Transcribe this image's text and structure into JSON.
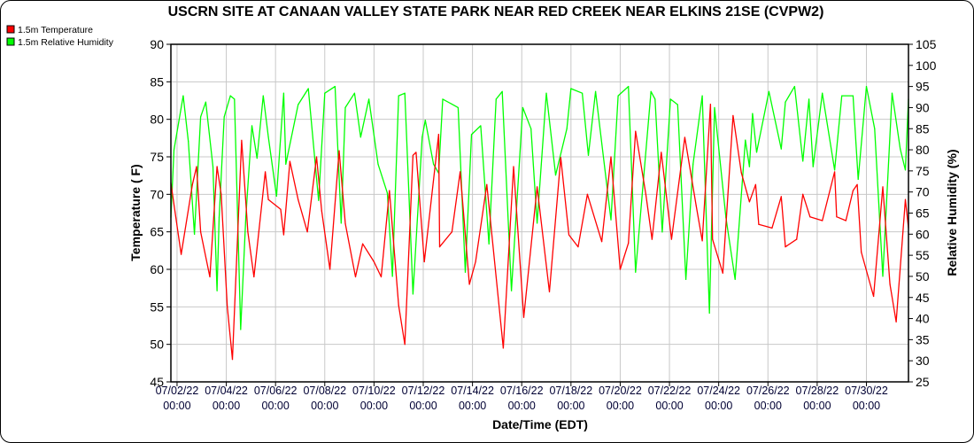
{
  "chart_data": {
    "type": "line",
    "title": "USCRN SITE AT CANAAN VALLEY STATE PARK NEAR RED CREEK NEAR ELKINS 21SE (CVPW2)",
    "xlabel": "Date/Time (EDT)",
    "ylabel": "Temperature ( F)",
    "y2label": "Relative Humidity (%)",
    "xlim": [
      "07/01/22 18:00",
      "07/31/22 17:00"
    ],
    "ylim": [
      45,
      90
    ],
    "y2lim": [
      25,
      105
    ],
    "yticks": [
      45,
      50,
      55,
      60,
      65,
      70,
      75,
      80,
      85,
      90
    ],
    "y2ticks": [
      25,
      30,
      35,
      40,
      45,
      50,
      55,
      60,
      65,
      70,
      75,
      80,
      85,
      90,
      95,
      100,
      105
    ],
    "xticks": [
      [
        "07/02/22",
        "00:00"
      ],
      [
        "07/04/22",
        "00:00"
      ],
      [
        "07/06/22",
        "00:00"
      ],
      [
        "07/08/22",
        "00:00"
      ],
      [
        "07/10/22",
        "00:00"
      ],
      [
        "07/12/22",
        "00:00"
      ],
      [
        "07/14/22",
        "00:00"
      ],
      [
        "07/16/22",
        "00:00"
      ],
      [
        "07/18/22",
        "00:00"
      ],
      [
        "07/20/22",
        "00:00"
      ],
      [
        "07/22/22",
        "00:00"
      ],
      [
        "07/24/22",
        "00:00"
      ],
      [
        "07/26/22",
        "00:00"
      ],
      [
        "07/28/22",
        "00:00"
      ],
      [
        "07/30/22",
        "00:00"
      ]
    ],
    "grid": true,
    "legend_position": "top-left",
    "series": [
      {
        "name": "1.5m Temperature",
        "color": "#ff0000",
        "axis": "left",
        "points": [
          [
            "07/01/22 18:00",
            71.5
          ],
          [
            "07/02/22 04:00",
            62
          ],
          [
            "07/02/22 15:00",
            71.3
          ],
          [
            "07/02/22 19:00",
            73.7
          ],
          [
            "07/02/22 23:00",
            65
          ],
          [
            "07/03/22 08:00",
            59
          ],
          [
            "07/03/22 15:00",
            73.7
          ],
          [
            "07/03/22 19:00",
            70
          ],
          [
            "07/04/22 01:00",
            55
          ],
          [
            "07/04/22 06:00",
            48
          ],
          [
            "07/04/22 15:00",
            77.2
          ],
          [
            "07/04/22 21:00",
            65
          ],
          [
            "07/05/22 03:00",
            59
          ],
          [
            "07/05/22 14:00",
            73
          ],
          [
            "07/05/22 17:00",
            69.3
          ],
          [
            "07/06/22 05:00",
            68
          ],
          [
            "07/06/22 08:00",
            64.6
          ],
          [
            "07/06/22 14:00",
            74.4
          ],
          [
            "07/06/22 22:00",
            69.3
          ],
          [
            "07/07/22 07:00",
            65
          ],
          [
            "07/07/22 16:00",
            75
          ],
          [
            "07/07/22 21:00",
            67.8
          ],
          [
            "07/08/22 05:00",
            60
          ],
          [
            "07/08/22 14:00",
            75.8
          ],
          [
            "07/08/22 20:00",
            66.1
          ],
          [
            "07/09/22 06:00",
            59
          ],
          [
            "07/09/22 13:00",
            63.4
          ],
          [
            "07/10/22 00:00",
            61
          ],
          [
            "07/10/22 07:00",
            59
          ],
          [
            "07/10/22 15:00",
            70.5
          ],
          [
            "07/11/22 00:00",
            55.2
          ],
          [
            "07/11/22 06:00",
            50
          ],
          [
            "07/11/22 14:00",
            75.2
          ],
          [
            "07/11/22 17:00",
            75.6
          ],
          [
            "07/12/22 01:00",
            61
          ],
          [
            "07/12/22 15:00",
            78
          ],
          [
            "07/12/22 16:00",
            63
          ],
          [
            "07/13/22 04:00",
            65
          ],
          [
            "07/13/22 12:00",
            73
          ],
          [
            "07/13/22 21:00",
            58
          ],
          [
            "07/14/22 03:00",
            61
          ],
          [
            "07/14/22 14:00",
            71.3
          ],
          [
            "07/15/22 06:00",
            49.5
          ],
          [
            "07/15/22 16:00",
            73.7
          ],
          [
            "07/16/22 02:00",
            53.6
          ],
          [
            "07/16/22 15:00",
            71
          ],
          [
            "07/17/22 03:00",
            57
          ],
          [
            "07/17/22 14:00",
            74.9
          ],
          [
            "07/17/22 22:00",
            64.6
          ],
          [
            "07/18/22 07:00",
            63
          ],
          [
            "07/18/22 16:00",
            70
          ],
          [
            "07/19/22 06:00",
            63.7
          ],
          [
            "07/19/22 15:00",
            75
          ],
          [
            "07/20/22 00:00",
            60
          ],
          [
            "07/20/22 08:00",
            63.5
          ],
          [
            "07/20/22 15:00",
            78.4
          ],
          [
            "07/21/22 01:00",
            70
          ],
          [
            "07/21/22 07:00",
            64
          ],
          [
            "07/21/22 16:00",
            75.6
          ],
          [
            "07/22/22 02:00",
            64
          ],
          [
            "07/22/22 15:00",
            77.6
          ],
          [
            "07/23/22 02:00",
            68.5
          ],
          [
            "07/23/22 08:00",
            63.8
          ],
          [
            "07/23/22 16:00",
            82
          ],
          [
            "07/23/22 18:00",
            64
          ],
          [
            "07/24/22 04:00",
            59.5
          ],
          [
            "07/24/22 14:00",
            80.5
          ],
          [
            "07/24/22 22:00",
            72.9
          ],
          [
            "07/25/22 06:00",
            69
          ],
          [
            "07/25/22 12:00",
            71.3
          ],
          [
            "07/25/22 15:00",
            66
          ],
          [
            "07/26/22 04:00",
            65.5
          ],
          [
            "07/26/22 13:00",
            69.7
          ],
          [
            "07/26/22 17:00",
            63
          ],
          [
            "07/27/22 04:00",
            64
          ],
          [
            "07/27/22 10:00",
            70
          ],
          [
            "07/27/22 17:00",
            67
          ],
          [
            "07/28/22 05:00",
            66.5
          ],
          [
            "07/28/22 17:00",
            73
          ],
          [
            "07/28/22 19:00",
            67
          ],
          [
            "07/29/22 04:00",
            66.5
          ],
          [
            "07/29/22 11:00",
            70.5
          ],
          [
            "07/29/22 15:00",
            71.3
          ],
          [
            "07/29/22 19:00",
            62.3
          ],
          [
            "07/30/22 07:00",
            56.4
          ],
          [
            "07/30/22 16:00",
            71
          ],
          [
            "07/30/22 23:00",
            58
          ],
          [
            "07/31/22 05:00",
            53
          ],
          [
            "07/31/22 14:00",
            69.3
          ],
          [
            "07/31/22 17:00",
            65.5
          ]
        ]
      },
      {
        "name": "1.5m Relative Humidity",
        "color": "#00ff00",
        "axis": "right",
        "points": [
          [
            "07/01/22 18:00",
            64
          ],
          [
            "07/01/22 21:00",
            80
          ],
          [
            "07/02/22 06:00",
            92.8
          ],
          [
            "07/02/22 11:00",
            82
          ],
          [
            "07/02/22 17:00",
            60
          ],
          [
            "07/02/22 23:00",
            87.8
          ],
          [
            "07/03/22 04:00",
            91.3
          ],
          [
            "07/03/22 11:00",
            76
          ],
          [
            "07/03/22 15:00",
            46.6
          ],
          [
            "07/03/22 17:00",
            64
          ],
          [
            "07/03/22 22:00",
            87.8
          ],
          [
            "07/04/22 04:00",
            92.8
          ],
          [
            "07/04/22 08:00",
            92
          ],
          [
            "07/04/22 14:00",
            37.4
          ],
          [
            "07/04/22 19:00",
            64
          ],
          [
            "07/05/22 01:00",
            85.7
          ],
          [
            "07/05/22 06:00",
            78
          ],
          [
            "07/05/22 12:00",
            92.8
          ],
          [
            "07/05/22 17:00",
            83
          ],
          [
            "07/06/22 01:00",
            69
          ],
          [
            "07/06/22 08:00",
            93.4
          ],
          [
            "07/06/22 10:00",
            76.6
          ],
          [
            "07/06/22 22:00",
            90.7
          ],
          [
            "07/07/22 08:00",
            94.5
          ],
          [
            "07/07/22 18:00",
            68
          ],
          [
            "07/08/22 00:00",
            93.4
          ],
          [
            "07/08/22 10:00",
            95
          ],
          [
            "07/08/22 16:00",
            62.6
          ],
          [
            "07/08/22 20:00",
            90
          ],
          [
            "07/09/22 05:00",
            93.4
          ],
          [
            "07/09/22 11:00",
            83
          ],
          [
            "07/09/22 19:00",
            92
          ],
          [
            "07/10/22 04:00",
            76.6
          ],
          [
            "07/10/22 13:00",
            69.7
          ],
          [
            "07/10/22 18:00",
            50
          ],
          [
            "07/11/22 00:00",
            92.8
          ],
          [
            "07/11/22 06:00",
            93.4
          ],
          [
            "07/11/22 14:00",
            45.8
          ],
          [
            "07/11/22 23:00",
            83
          ],
          [
            "07/12/22 02:00",
            87
          ],
          [
            "07/12/22 10:00",
            76.6
          ],
          [
            "07/12/22 15:00",
            74.5
          ],
          [
            "07/12/22 19:00",
            92
          ],
          [
            "07/13/22 10:00",
            90
          ],
          [
            "07/13/22 17:00",
            51
          ],
          [
            "07/13/22 23:00",
            83.6
          ],
          [
            "07/14/22 08:00",
            85.7
          ],
          [
            "07/14/22 16:00",
            57.7
          ],
          [
            "07/14/22 23:00",
            92
          ],
          [
            "07/15/22 05:00",
            93.8
          ],
          [
            "07/15/22 14:00",
            46.6
          ],
          [
            "07/16/22 01:00",
            90
          ],
          [
            "07/16/22 09:00",
            85
          ],
          [
            "07/16/22 15:00",
            62.6
          ],
          [
            "07/17/22 00:00",
            93.4
          ],
          [
            "07/17/22 09:00",
            74
          ],
          [
            "07/17/22 20:00",
            85
          ],
          [
            "07/18/22 00:00",
            94.5
          ],
          [
            "07/18/22 11:00",
            93.4
          ],
          [
            "07/18/22 17:00",
            78.7
          ],
          [
            "07/19/22 00:00",
            93.8
          ],
          [
            "07/19/22 15:00",
            63.4
          ],
          [
            "07/19/22 22:00",
            92.8
          ],
          [
            "07/20/22 08:00",
            95
          ],
          [
            "07/20/22 15:00",
            51
          ],
          [
            "07/21/22 06:00",
            93.8
          ],
          [
            "07/21/22 10:00",
            92
          ],
          [
            "07/21/22 17:00",
            60.5
          ],
          [
            "07/22/22 01:00",
            92
          ],
          [
            "07/22/22 08:00",
            90.7
          ],
          [
            "07/22/22 16:00",
            49.3
          ],
          [
            "07/22/22 23:00",
            76.6
          ],
          [
            "07/23/22 08:00",
            92.8
          ],
          [
            "07/23/22 15:00",
            41.3
          ],
          [
            "07/23/22 20:00",
            90
          ],
          [
            "07/24/22 07:00",
            64
          ],
          [
            "07/24/22 16:00",
            49.3
          ],
          [
            "07/25/22 02:00",
            82.3
          ],
          [
            "07/25/22 06:00",
            76
          ],
          [
            "07/25/22 09:00",
            88.6
          ],
          [
            "07/25/22 13:00",
            79.4
          ],
          [
            "07/26/22 01:00",
            93.8
          ],
          [
            "07/26/22 13:00",
            80.2
          ],
          [
            "07/26/22 17:00",
            91.3
          ],
          [
            "07/27/22 02:00",
            95
          ],
          [
            "07/27/22 10:00",
            77.3
          ],
          [
            "07/27/22 16:00",
            92
          ],
          [
            "07/27/22 20:00",
            76
          ],
          [
            "07/28/22 05:00",
            93.4
          ],
          [
            "07/28/22 17:00",
            75.2
          ],
          [
            "07/29/22 00:00",
            92.8
          ],
          [
            "07/29/22 11:00",
            92.8
          ],
          [
            "07/29/22 16:00",
            73
          ],
          [
            "07/30/22 00:00",
            95
          ],
          [
            "07/30/22 08:00",
            85
          ],
          [
            "07/30/22 16:00",
            50
          ],
          [
            "07/31/22 01:00",
            93.4
          ],
          [
            "07/31/22 09:00",
            80.2
          ],
          [
            "07/31/22 14:00",
            75.2
          ],
          [
            "07/31/22 17:00",
            92
          ]
        ]
      }
    ]
  }
}
